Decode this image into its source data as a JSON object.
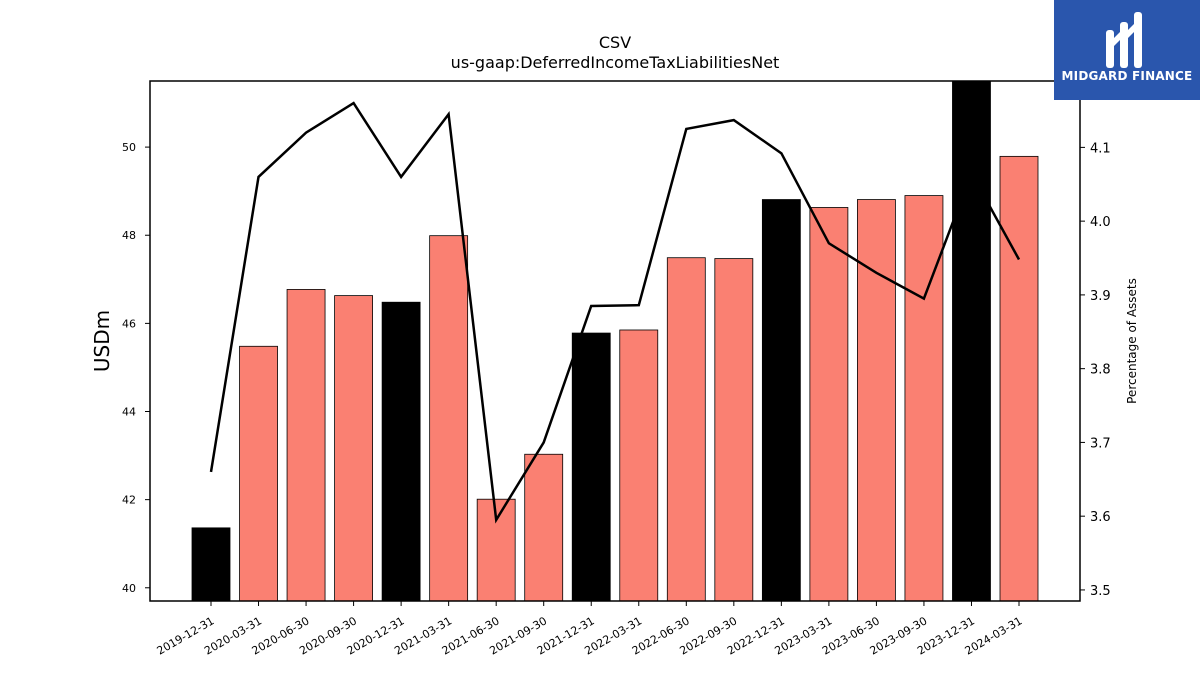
{
  "brand": {
    "name": "MIDGARD FINANCE",
    "bg_color": "#2a56ad"
  },
  "chart_data": {
    "type": "bar",
    "title": "CSV",
    "subtitle": "us-gaap:DeferredIncomeTaxLiabilitiesNet",
    "ylabel": "USDm",
    "y2label": "Percentage of Assets",
    "categories": [
      "2019-12-31",
      "2020-03-31",
      "2020-06-30",
      "2020-09-30",
      "2020-12-31",
      "2021-03-31",
      "2021-06-30",
      "2021-09-30",
      "2021-12-31",
      "2022-03-31",
      "2022-06-30",
      "2022-09-30",
      "2022-12-31",
      "2023-03-31",
      "2023-06-30",
      "2023-09-30",
      "2023-12-31",
      "2024-03-31"
    ],
    "series": [
      {
        "type": "bar",
        "values": [
          41.36,
          45.48,
          46.77,
          46.63,
          46.48,
          47.99,
          42.01,
          43.03,
          45.78,
          45.85,
          47.49,
          47.47,
          48.81,
          48.63,
          48.81,
          48.9,
          51.49,
          49.79
        ]
      },
      {
        "type": "line",
        "axis": "right",
        "values": [
          3.66,
          4.06,
          4.12,
          4.16,
          4.06,
          4.145,
          3.595,
          3.7,
          3.885,
          3.886,
          4.125,
          4.137,
          4.092,
          3.97,
          3.93,
          3.895,
          4.065,
          3.948
        ]
      }
    ],
    "bar_colors": [
      "#000000",
      "#fa8072",
      "#fa8072",
      "#fa8072",
      "#000000",
      "#fa8072",
      "#fa8072",
      "#fa8072",
      "#000000",
      "#fa8072",
      "#fa8072",
      "#fa8072",
      "#000000",
      "#fa8072",
      "#fa8072",
      "#fa8072",
      "#000000",
      "#fa8072"
    ],
    "line_color": "#000000",
    "ylim": [
      39.7,
      51.5
    ],
    "y2lim": [
      3.485,
      4.19
    ],
    "yticks": [
      40,
      42,
      44,
      46,
      48,
      50
    ],
    "y2ticks": [
      3.5,
      3.6,
      3.7,
      3.8,
      3.9,
      4.0,
      4.1
    ],
    "grid": false,
    "legend": "none"
  }
}
